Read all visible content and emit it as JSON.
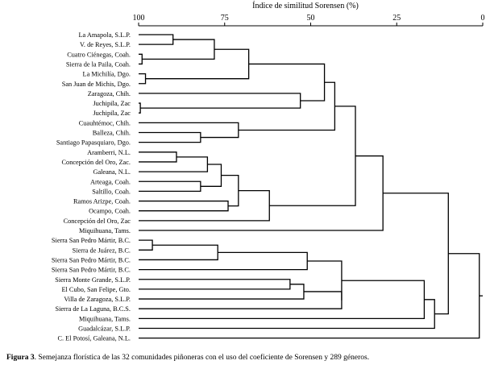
{
  "chart_data": {
    "type": "dendrogram",
    "title": "Índice de similitud Sorensen (%)",
    "axis": {
      "ticks": [
        100,
        75,
        50,
        25,
        0
      ],
      "range": [
        100,
        0
      ],
      "orientation": "top"
    },
    "leaves": [
      "La Amapola, S.L.P.",
      "V. de Reyes, S.L.P.",
      "Cuatro Ciénegas, Coah.",
      "Sierra de la Paila, Coah.",
      "La Michilía, Dgo.",
      "San Juan de Michis, Dgo.",
      "Zaragoza, Chih.",
      "Juchipila, Zac",
      "Juchipila, Zac",
      "Cuauhtémoc, Chih.",
      "Balleza, Chih.",
      "Santiago Papasquiaro, Dgo.",
      "Aramberri, N.L.",
      "Concepción del Oro, Zac.",
      "Galeana, N.L.",
      "Arteaga, Coah.",
      "Saltillo, Coah.",
      "Ramos Arizpe, Coah.",
      "Ocampo, Coah.",
      "Concepción del Oro, Zac",
      "Miquihuana, Tams.",
      "Sierra San Pedro Mártir, B.C.",
      "Sierra de Juárez, B.C.",
      "Sierra San Pedro Mártir, B.C.",
      "Sierra San Pedro Mártir, B.C.",
      "Sierra Monte Grande, S.L.P.",
      "El Cubo, San Felipe, Gto.",
      "Villa de Zaragoza, S.L.P.",
      "Sierra de La Laguna, B.C.S.",
      "Miquihuana, Tams.",
      "Guadalcázar, S.L.P.",
      "C. El Potosí, Galeana, N.L."
    ],
    "merges": [
      {
        "id": "n1",
        "a": 2,
        "b": 3,
        "similarity": 99
      },
      {
        "id": "n2",
        "a": 7,
        "b": 8,
        "similarity": 99.5
      },
      {
        "id": "n3",
        "a": 4,
        "b": 5,
        "similarity": 98
      },
      {
        "id": "n4",
        "a": 0,
        "b": 1,
        "similarity": 90
      },
      {
        "id": "n5",
        "a": "n4",
        "b": "n1",
        "similarity": 78
      },
      {
        "id": "n6",
        "a": "n5",
        "b": "n3",
        "similarity": 68
      },
      {
        "id": "n7",
        "a": 6,
        "b": "n2",
        "similarity": 53
      },
      {
        "id": "n8",
        "a": 10,
        "b": 11,
        "similarity": 82
      },
      {
        "id": "n9",
        "a": 9,
        "b": "n8",
        "similarity": 71
      },
      {
        "id": "n10",
        "a": "n6",
        "b": "n7",
        "similarity": 46
      },
      {
        "id": "n11",
        "a": "n10",
        "b": "n9",
        "similarity": 43
      },
      {
        "id": "n12",
        "a": 12,
        "b": 13,
        "similarity": 89
      },
      {
        "id": "n13",
        "a": "n12",
        "b": 14,
        "similarity": 80
      },
      {
        "id": "n14",
        "a": 15,
        "b": 16,
        "similarity": 82
      },
      {
        "id": "n15",
        "a": "n13",
        "b": "n14",
        "similarity": 76
      },
      {
        "id": "n16",
        "a": 17,
        "b": 18,
        "similarity": 74
      },
      {
        "id": "n17",
        "a": "n15",
        "b": "n16",
        "similarity": 71
      },
      {
        "id": "n18",
        "a": "n17",
        "b": 19,
        "similarity": 62
      },
      {
        "id": "n19",
        "a": "n11",
        "b": "n18",
        "similarity": 37
      },
      {
        "id": "n20",
        "a": "n19",
        "b": 20,
        "similarity": 29
      },
      {
        "id": "n21",
        "a": 21,
        "b": 22,
        "similarity": 96
      },
      {
        "id": "n22",
        "a": "n21",
        "b": 23,
        "similarity": 77
      },
      {
        "id": "n23",
        "a": "n22",
        "b": 24,
        "similarity": 51
      },
      {
        "id": "n24",
        "a": 25,
        "b": 26,
        "similarity": 56
      },
      {
        "id": "n25",
        "a": "n24",
        "b": 27,
        "similarity": 52
      },
      {
        "id": "n26",
        "a": "n25",
        "b": 28,
        "similarity": 41
      },
      {
        "id": "n27",
        "a": "n23",
        "b": "n26",
        "similarity": 41
      },
      {
        "id": "n28",
        "a": "n27",
        "b": 29,
        "similarity": 17
      },
      {
        "id": "n29",
        "a": "n28",
        "b": 30,
        "similarity": 14
      },
      {
        "id": "n30",
        "a": "n20",
        "b": "n29",
        "similarity": 10
      },
      {
        "id": "n31",
        "a": "n30",
        "b": 31,
        "similarity": 1
      }
    ]
  },
  "caption": {
    "label": "Figura 3",
    "text": ". Semejanza florística de las 32 comunidades piñoneras con el uso del coeficiente de Sorensen y 289 géneros."
  }
}
